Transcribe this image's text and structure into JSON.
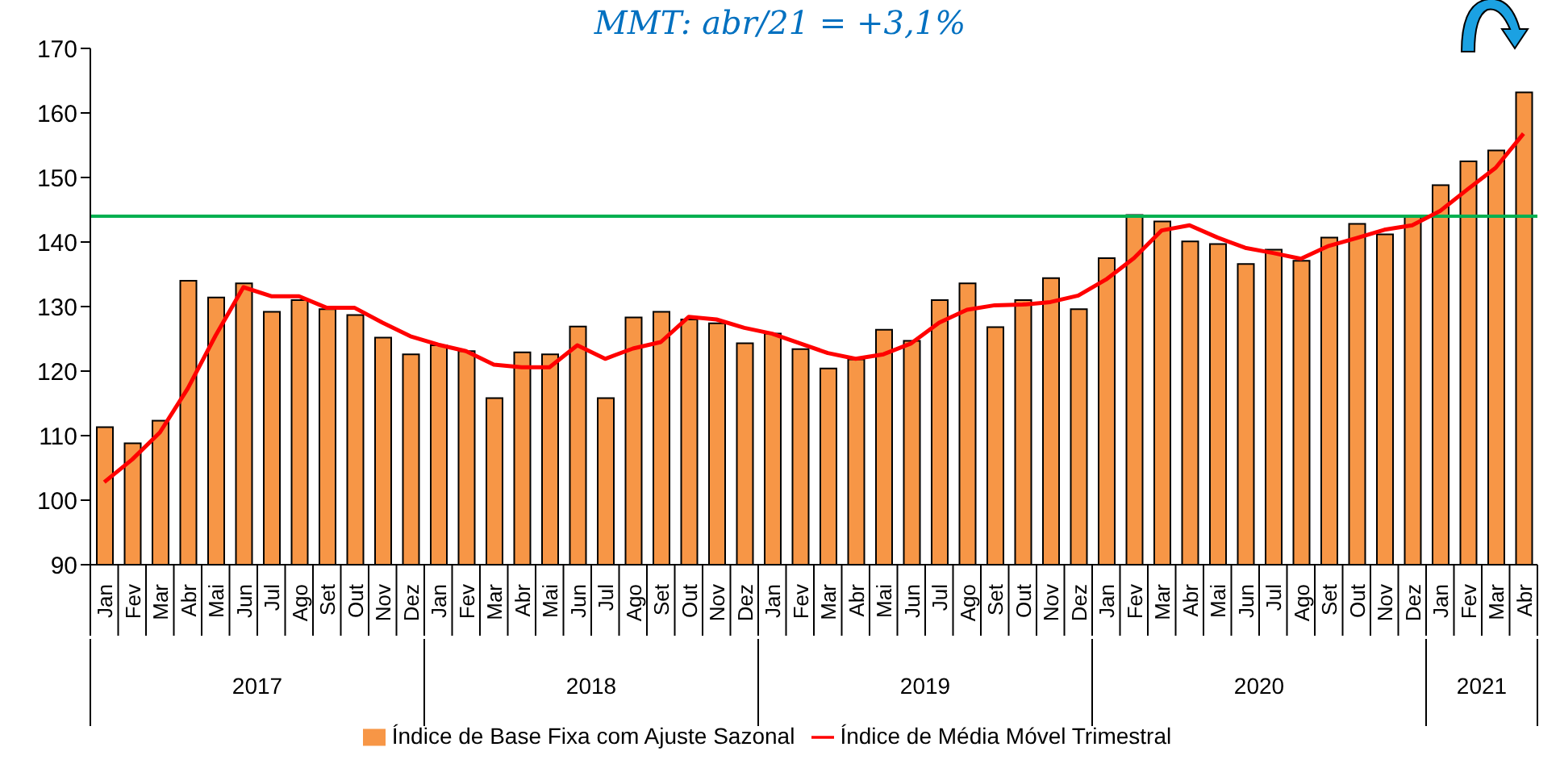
{
  "chart_data": {
    "type": "bar",
    "title": "MMT: abr/21 = +3,1%",
    "categories": [
      "Jan",
      "Fev",
      "Mar",
      "Abr",
      "Mai",
      "Jun",
      "Jul",
      "Ago",
      "Set",
      "Out",
      "Nov",
      "Dez",
      "Jan",
      "Fev",
      "Mar",
      "Abr",
      "Mai",
      "Jun",
      "Jul",
      "Ago",
      "Set",
      "Out",
      "Nov",
      "Dez",
      "Jan",
      "Fev",
      "Mar",
      "Abr",
      "Mai",
      "Jun",
      "Jul",
      "Ago",
      "Set",
      "Out",
      "Nov",
      "Dez",
      "Jan",
      "Fev",
      "Mar",
      "Abr",
      "Mai",
      "Jun",
      "Jul",
      "Ago",
      "Set",
      "Out",
      "Nov",
      "Dez",
      "Jan",
      "Fev",
      "Mar",
      "Abr"
    ],
    "series": [
      {
        "name": "Índice de Base Fixa com Ajuste Sazonal",
        "color": "#f79646",
        "values": [
          111.3,
          108.8,
          112.3,
          134,
          131.4,
          133.6,
          129.2,
          131,
          129.6,
          128.7,
          125.2,
          122.6,
          124,
          123.1,
          115.8,
          122.9,
          122.6,
          126.9,
          115.8,
          128.3,
          129.2,
          128,
          127.4,
          124.3,
          125.8,
          123.4,
          120.4,
          121.8,
          126.4,
          124.7,
          131,
          133.6,
          126.8,
          131,
          134.4,
          129.6,
          137.5,
          144.2,
          143.2,
          140.1,
          139.7,
          136.6,
          138.8,
          137.1,
          140.7,
          142.8,
          141.2,
          144,
          148.8,
          152.5,
          154.2,
          163.2
        ]
      },
      {
        "name": "Índice de Média Móvel Trimestral",
        "type": "line",
        "color": "#ff0000",
        "values": [
          102.8,
          106.3,
          110.5,
          117.3,
          125.5,
          133,
          131.6,
          131.6,
          129.8,
          129.8,
          127.5,
          125.4,
          124.1,
          123.1,
          121,
          120.6,
          120.6,
          124,
          121.9,
          123.5,
          124.5,
          128.4,
          128,
          126.7,
          125.8,
          124.3,
          122.8,
          121.9,
          122.6,
          124.3,
          127.5,
          129.5,
          130.2,
          130.3,
          130.7,
          131.7,
          134.2,
          137.5,
          141.8,
          142.6,
          140.7,
          139.1,
          138.3,
          137.4,
          139.4,
          140.6,
          141.9,
          142.6,
          144.8,
          148.2,
          151.5,
          156.8
        ]
      }
    ],
    "annotations": [
      "2017",
      "2018",
      "2019",
      "2020",
      "2021"
    ],
    "ylim": [
      90,
      170
    ],
    "yticks": [
      90,
      100,
      110,
      120,
      130,
      140,
      150,
      160,
      170
    ],
    "ref_lines": [
      {
        "axis": "y",
        "value": 144,
        "color": "#00b050"
      }
    ],
    "legend": "bottom",
    "grid": false,
    "marker": "none",
    "line_style": "solid"
  }
}
